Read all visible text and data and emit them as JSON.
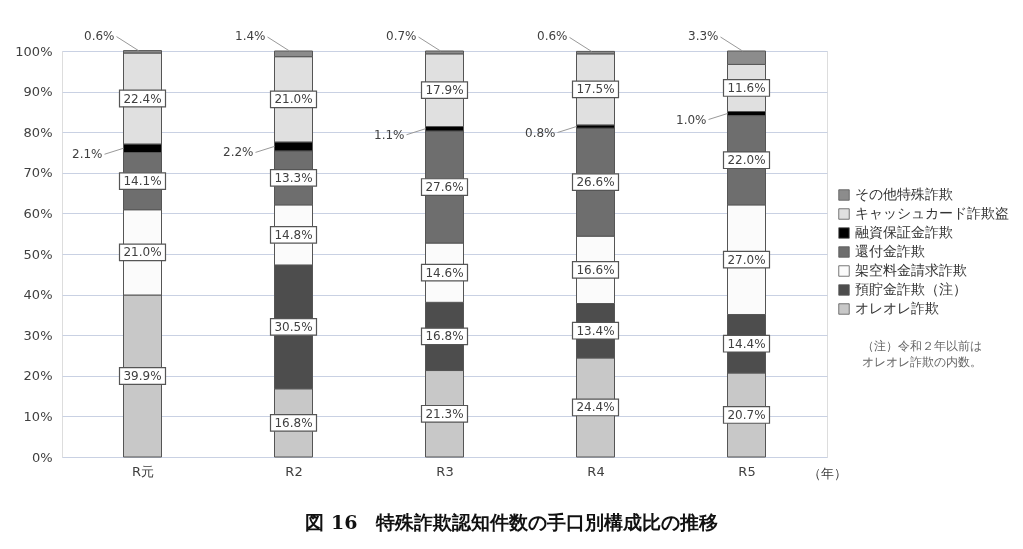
{
  "chart_data": {
    "type": "bar",
    "stacked": true,
    "title": "図 16　特殊詐欺認知件数の手口別構成比の推移",
    "xlabel": "（年）",
    "categories": [
      "R元",
      "R2",
      "R3",
      "R4",
      "R5"
    ],
    "series": [
      {
        "name": "オレオレ詐欺",
        "color": "#c8c8c8",
        "values": [
          39.9,
          16.8,
          21.3,
          24.4,
          20.7
        ],
        "value_labels": [
          "39.9%",
          "16.8%",
          "21.3%",
          "24.4%",
          "20.7%"
        ]
      },
      {
        "name": "預貯金詐欺（注）",
        "color": "#4d4d4d",
        "values": [
          null,
          30.5,
          16.8,
          13.4,
          14.4
        ],
        "value_labels": [
          null,
          "30.5%",
          "16.8%",
          "13.4%",
          "14.4%"
        ]
      },
      {
        "name": "架空料金請求詐欺",
        "color": "#fbfbfb",
        "values": [
          21.0,
          14.8,
          14.6,
          16.6,
          27.0
        ],
        "value_labels": [
          "21.0%",
          "14.8%",
          "14.6%",
          "16.6%",
          "27.0%"
        ]
      },
      {
        "name": "還付金詐欺",
        "color": "#6e6e6e",
        "values": [
          14.1,
          13.3,
          27.6,
          26.6,
          22.0
        ],
        "value_labels": [
          "14.1%",
          "13.3%",
          "27.6%",
          "26.6%",
          "22.0%"
        ]
      },
      {
        "name": "融資保証金詐欺",
        "color": "#000000",
        "values": [
          2.1,
          2.2,
          1.1,
          0.8,
          1.0
        ],
        "value_labels": [
          "2.1%",
          "2.2%",
          "1.1%",
          "0.8%",
          "1.0%"
        ]
      },
      {
        "name": "キャッシュカード詐欺盗",
        "color": "#e0e0e0",
        "values": [
          22.4,
          21.0,
          17.9,
          17.5,
          11.6
        ],
        "value_labels": [
          "22.4%",
          "21.0%",
          "17.9%",
          "17.5%",
          "11.6%"
        ]
      },
      {
        "name": "その他特殊詐欺",
        "color": "#8c8c8c",
        "values": [
          0.6,
          1.4,
          0.7,
          0.6,
          3.3
        ],
        "value_labels": [
          "0.6%",
          "1.4%",
          "0.7%",
          "0.6%",
          "3.3%"
        ]
      }
    ],
    "ylim": [
      0,
      100
    ],
    "yticks": [
      {
        "value": 0,
        "label": "0%"
      },
      {
        "value": 10,
        "label": "10%"
      },
      {
        "value": 20,
        "label": "20%"
      },
      {
        "value": 30,
        "label": "30%"
      },
      {
        "value": 40,
        "label": "40%"
      },
      {
        "value": 50,
        "label": "50%"
      },
      {
        "value": 60,
        "label": "60%"
      },
      {
        "value": 70,
        "label": "70%"
      },
      {
        "value": 80,
        "label": "80%"
      },
      {
        "value": 90,
        "label": "90%"
      },
      {
        "value": 100,
        "label": "100%"
      }
    ],
    "grid": "y",
    "legend": "right",
    "annotations": [
      "（注）令和２年以前はオレオレ詐欺の内数。"
    ]
  }
}
